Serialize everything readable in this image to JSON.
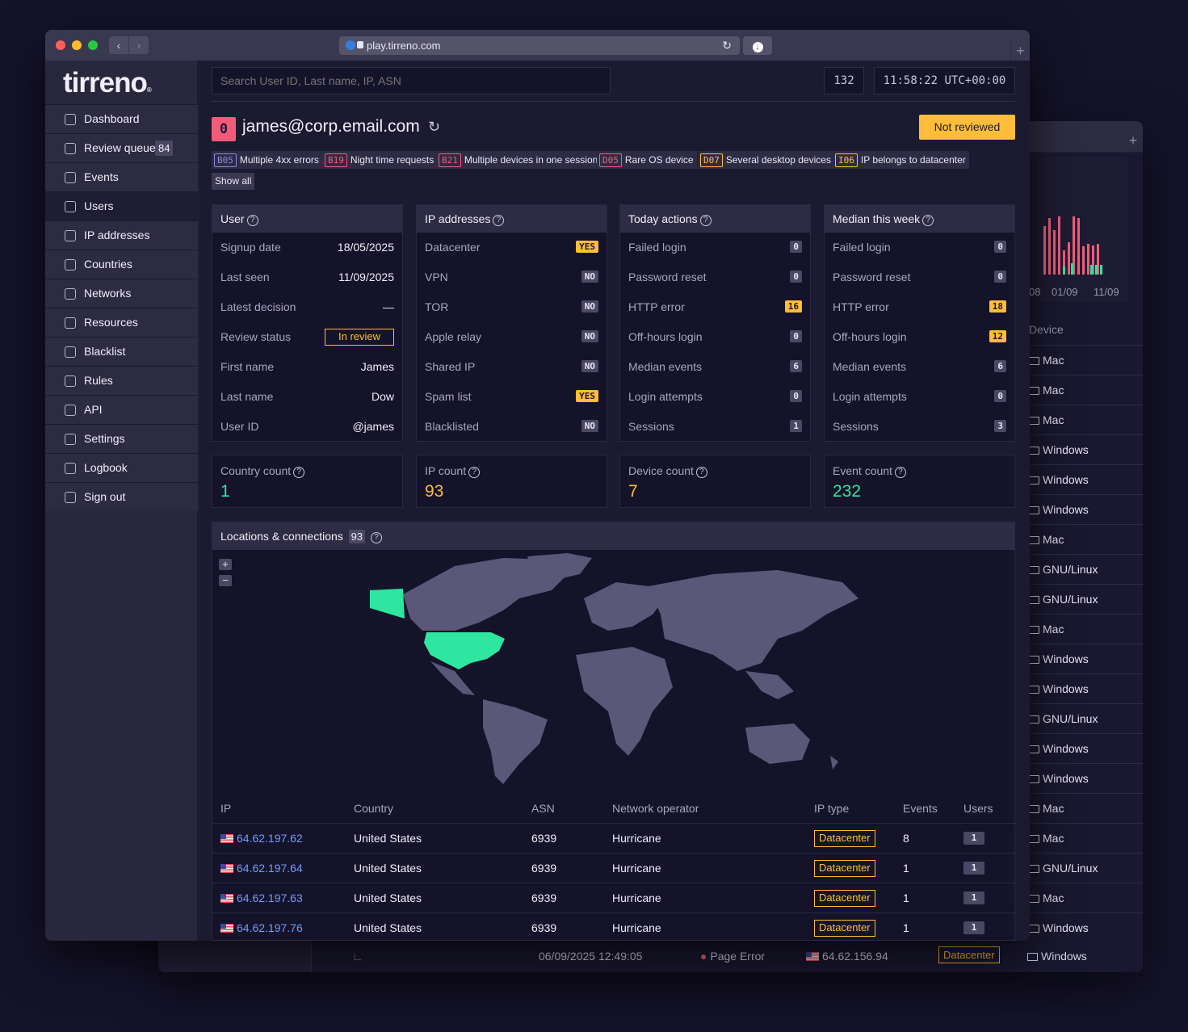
{
  "browser": {
    "url": "play.tirreno.com"
  },
  "app": {
    "logo": "tirreno",
    "logo_mark": "®"
  },
  "sidebar": {
    "items": [
      {
        "label": "Dashboard",
        "icon": "dashboard-icon"
      },
      {
        "label": "Review queue",
        "badge": "84",
        "icon": "review-icon"
      },
      {
        "label": "Events",
        "icon": "events-icon"
      },
      {
        "label": "Users",
        "icon": "users-icon",
        "active": true
      },
      {
        "label": "IP addresses",
        "icon": "network-icon"
      },
      {
        "label": "Countries",
        "icon": "globe-icon"
      },
      {
        "label": "Networks",
        "icon": "antenna-icon"
      },
      {
        "label": "Resources",
        "icon": "resources-icon"
      },
      {
        "label": "Blacklist",
        "icon": "blacklist-icon"
      },
      {
        "label": "Rules",
        "icon": "flag-icon"
      },
      {
        "label": "API",
        "icon": "api-icon"
      },
      {
        "label": "Settings",
        "icon": "gear-icon"
      },
      {
        "label": "Logbook",
        "icon": "logbook-icon"
      },
      {
        "label": "Sign out",
        "icon": "signout-icon"
      }
    ]
  },
  "header": {
    "search_placeholder": "Search User ID, Last name, IP, ASN",
    "counter": "132",
    "clock": "11:58:22 UTC+00:00"
  },
  "user": {
    "score": "0",
    "email": "james@corp.email.com",
    "review_button": "Not reviewed",
    "show_all": "Show all",
    "tags": [
      {
        "code": "B05",
        "label": "Multiple 4xx errors",
        "color": "#8c88d8"
      },
      {
        "code": "B19",
        "label": "Night time requests",
        "color": "#f25c7a"
      },
      {
        "code": "B21",
        "label": "Multiple devices in one session",
        "color": "#f25c7a"
      },
      {
        "code": "D05",
        "label": "Rare OS device",
        "color": "#f25c7a"
      },
      {
        "code": "D07",
        "label": "Several desktop devices",
        "color": "#ffbd3a"
      },
      {
        "code": "I06",
        "label": "IP belongs to datacenter",
        "color": "#ffbd3a"
      }
    ]
  },
  "cards": {
    "user": {
      "title": "User",
      "rows": [
        {
          "k": "Signup date",
          "v": "18/05/2025"
        },
        {
          "k": "Last seen",
          "v": "11/09/2025"
        },
        {
          "k": "Latest decision",
          "v": "—"
        },
        {
          "k": "Review status",
          "v": "In review"
        },
        {
          "k": "First name",
          "v": "James"
        },
        {
          "k": "Last name",
          "v": "Dow"
        },
        {
          "k": "User ID",
          "v": "@james"
        }
      ]
    },
    "ip": {
      "title": "IP addresses",
      "rows": [
        {
          "k": "Datacenter",
          "v": "YES"
        },
        {
          "k": "VPN",
          "v": "NO"
        },
        {
          "k": "TOR",
          "v": "NO"
        },
        {
          "k": "Apple relay",
          "v": "NO"
        },
        {
          "k": "Shared IP",
          "v": "NO"
        },
        {
          "k": "Spam list",
          "v": "YES"
        },
        {
          "k": "Blacklisted",
          "v": "NO"
        }
      ]
    },
    "today": {
      "title": "Today actions",
      "rows": [
        {
          "k": "Failed login",
          "v": "0"
        },
        {
          "k": "Password reset",
          "v": "0"
        },
        {
          "k": "HTTP error",
          "v": "16",
          "hl": true
        },
        {
          "k": "Off-hours login",
          "v": "0"
        },
        {
          "k": "Median events",
          "v": "6"
        },
        {
          "k": "Login attempts",
          "v": "0"
        },
        {
          "k": "Sessions",
          "v": "1"
        }
      ]
    },
    "median": {
      "title": "Median this week",
      "rows": [
        {
          "k": "Failed login",
          "v": "0"
        },
        {
          "k": "Password reset",
          "v": "0"
        },
        {
          "k": "HTTP error",
          "v": "18",
          "hl": true
        },
        {
          "k": "Off-hours login",
          "v": "12",
          "hl": true
        },
        {
          "k": "Median events",
          "v": "6"
        },
        {
          "k": "Login attempts",
          "v": "0"
        },
        {
          "k": "Sessions",
          "v": "3"
        }
      ]
    }
  },
  "stats": [
    {
      "label": "Country count",
      "value": "1",
      "color": "#2ee6a0"
    },
    {
      "label": "IP count",
      "value": "93",
      "color": "#ffbd3a"
    },
    {
      "label": "Device count",
      "value": "7",
      "color": "#ffbd3a"
    },
    {
      "label": "Event count",
      "value": "232",
      "color": "#2ee6a0"
    }
  ],
  "locations": {
    "title": "Locations & connections",
    "count": "93",
    "zoom_in": "+",
    "zoom_out": "−",
    "columns": [
      "IP",
      "Country",
      "ASN",
      "Network operator",
      "IP type",
      "Events",
      "Users"
    ],
    "rows": [
      {
        "ip": "64.62.197.62",
        "country": "United States",
        "asn": "6939",
        "operator": "Hurricane",
        "type": "Datacenter",
        "events": "8",
        "users": "1"
      },
      {
        "ip": "64.62.197.64",
        "country": "United States",
        "asn": "6939",
        "operator": "Hurricane",
        "type": "Datacenter",
        "events": "1",
        "users": "1"
      },
      {
        "ip": "64.62.197.63",
        "country": "United States",
        "asn": "6939",
        "operator": "Hurricane",
        "type": "Datacenter",
        "events": "1",
        "users": "1"
      },
      {
        "ip": "64.62.197.76",
        "country": "United States",
        "asn": "6939",
        "operator": "Hurricane",
        "type": "Datacenter",
        "events": "1",
        "users": "1"
      }
    ]
  },
  "background_window": {
    "dates": [
      "08",
      "01/09",
      "11/09"
    ],
    "device_header": "Device",
    "devices": [
      "Mac",
      "Mac",
      "Mac",
      "Windows",
      "Windows",
      "Windows",
      "Mac",
      "GNU/Linux",
      "GNU/Linux",
      "Mac",
      "Windows",
      "Windows",
      "GNU/Linux",
      "Windows",
      "Windows",
      "Mac",
      "Mac",
      "GNU/Linux",
      "Mac",
      "Windows"
    ],
    "bottom_row": {
      "time": "06/09/2025 12:49:05",
      "event": "Page Error",
      "ip": "64.62.156.94",
      "type": "Datacenter",
      "device": "Windows"
    }
  }
}
